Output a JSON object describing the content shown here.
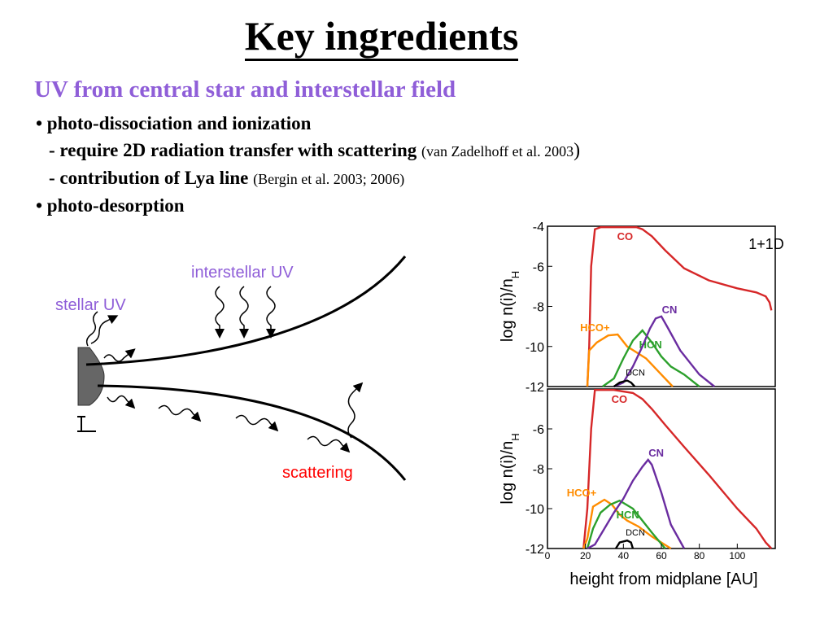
{
  "slide": {
    "title": "Key ingredients",
    "subtitle": "UV from central star and interstellar field",
    "bullet1": "• photo-dissociation and ionization",
    "sub1_text": "- require 2D radiation transfer with scattering",
    "sub1_ref": "(van Zadelhoff et al. 2003",
    "sub1_paren": ")",
    "sub2_text": "- contribution of Lya line",
    "sub2_ref": "(Bergin et al. 2003; 2006)",
    "bullet2": "• photo-desorption"
  },
  "diagram": {
    "interstellar_label": "interstellar UV",
    "stellar_label": "stellar UV",
    "scattering_label": "scattering",
    "colors": {
      "interstellar": "#8f5ed8",
      "stellar": "#8f5ed8",
      "scattering": "#ff0000"
    }
  },
  "chart_data": {
    "type": "line",
    "model_label": "1+1D",
    "xlabel": "height from midplane [AU]",
    "x_ticks": [
      "0",
      "20",
      "40",
      "60",
      "80",
      "100"
    ],
    "xlim": [
      0,
      120
    ],
    "panels": [
      {
        "ylabel": "log n(i)/n_H",
        "y_ticks": [
          "-4",
          "-6",
          "-8",
          "-10",
          "-12"
        ],
        "ylim": [
          -12,
          -4
        ],
        "series": [
          {
            "name": "CO",
            "color": "#d62728",
            "x": [
              21,
              22,
              23,
              25,
              28,
              34,
              40,
              47,
              50,
              55,
              62,
              72,
              85,
              100,
              110,
              115,
              117,
              118
            ],
            "y": [
              -12,
              -10,
              -6,
              -4.15,
              -4.05,
              -4.05,
              -4.05,
              -4.05,
              -4.15,
              -4.5,
              -5.2,
              -6.1,
              -6.7,
              -7.1,
              -7.3,
              -7.5,
              -7.8,
              -8.2
            ]
          },
          {
            "name": "HCO+",
            "color": "#ff8c00",
            "x": [
              21,
              22,
              26,
              32,
              37,
              42,
              47,
              52,
              58,
              66
            ],
            "y": [
              -12,
              -10.2,
              -9.8,
              -9.45,
              -9.4,
              -10.0,
              -10.3,
              -10.6,
              -11.2,
              -12
            ]
          },
          {
            "name": "HCN",
            "color": "#2ca02c",
            "x": [
              29,
              35,
              40,
              45,
              50,
              55,
              60,
              65,
              72,
              80
            ],
            "y": [
              -12,
              -11.6,
              -10.6,
              -9.7,
              -9.2,
              -9.8,
              -10.5,
              -11.0,
              -11.4,
              -12
            ]
          },
          {
            "name": "CN",
            "color": "#6a2ca0",
            "x": [
              35,
              40,
              45,
              50,
              54,
              57,
              60,
              63,
              70,
              80,
              88
            ],
            "y": [
              -12,
              -11.8,
              -11.0,
              -10.0,
              -9.1,
              -8.6,
              -8.5,
              -9.0,
              -10.2,
              -11.4,
              -12
            ]
          },
          {
            "name": "DCN",
            "color": "#000000",
            "x": [
              35,
              38,
              42,
              44,
              46
            ],
            "y": [
              -12,
              -11.8,
              -11.7,
              -11.8,
              -12
            ]
          }
        ]
      },
      {
        "ylabel": "log n(i)/n_H",
        "y_ticks": [
          "-6",
          "-8",
          "-10",
          "-12"
        ],
        "ylim": [
          -12,
          -4
        ],
        "series": [
          {
            "name": "CO",
            "color": "#d62728",
            "x": [
              19,
              21,
              23,
              25,
              35,
              45,
              50,
              55,
              62,
              72,
              85,
              100,
              110,
              115,
              118
            ],
            "y": [
              -12,
              -10,
              -6,
              -4.05,
              -4.05,
              -4.2,
              -4.5,
              -5.0,
              -5.8,
              -6.9,
              -8.3,
              -10.0,
              -11.0,
              -11.7,
              -12
            ]
          },
          {
            "name": "HCO+",
            "color": "#ff8c00",
            "x": [
              19,
              21,
              24,
              30,
              34,
              38,
              42,
              48,
              55,
              65
            ],
            "y": [
              -12,
              -11.5,
              -9.9,
              -9.55,
              -9.8,
              -10.3,
              -10.6,
              -10.9,
              -11.4,
              -12
            ]
          },
          {
            "name": "HCN",
            "color": "#2ca02c",
            "x": [
              21,
              24,
              28,
              33,
              38,
              45,
              50,
              55,
              62
            ],
            "y": [
              -12,
              -11.0,
              -10.2,
              -9.8,
              -9.6,
              -10.0,
              -10.6,
              -11.2,
              -12
            ]
          },
          {
            "name": "CN",
            "color": "#6a2ca0",
            "x": [
              21,
              25,
              30,
              35,
              40,
              45,
              50,
              53,
              55,
              60,
              65,
              72
            ],
            "y": [
              -12,
              -11.8,
              -11.0,
              -10.2,
              -9.5,
              -8.6,
              -7.9,
              -7.55,
              -7.8,
              -9.2,
              -10.8,
              -12
            ]
          },
          {
            "name": "DCN",
            "color": "#000000",
            "x": [
              36,
              38,
              42,
              44,
              45
            ],
            "y": [
              -12,
              -11.7,
              -11.6,
              -11.7,
              -12
            ]
          }
        ]
      }
    ]
  }
}
